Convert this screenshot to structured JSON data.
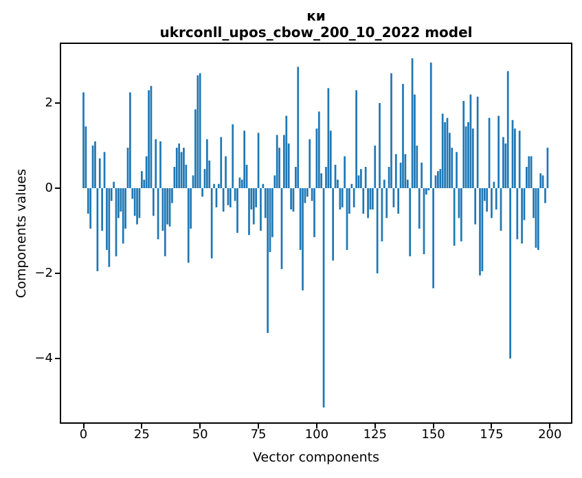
{
  "title": {
    "line1": "ки",
    "line2": "ukrconll_upos_cbow_200_10_2022 model"
  },
  "colors": {
    "bar": "#1f77b4",
    "spine": "#000000",
    "text": "#000000",
    "background": "#ffffff"
  },
  "chart_data": {
    "type": "bar",
    "title": "ки — ukrconll_upos_cbow_200_10_2022 model",
    "xlabel": "Vector components",
    "ylabel": "Components values",
    "x_start": 0,
    "bar_width": 0.8,
    "xlim": [
      -10.4,
      209.4
    ],
    "ylim": [
      -5.54,
      3.42
    ],
    "grid": false,
    "legend": null,
    "x_ticks": [
      0,
      25,
      50,
      75,
      100,
      125,
      150,
      175,
      200
    ],
    "x_tick_labels": [
      "0",
      "25",
      "50",
      "75",
      "100",
      "125",
      "150",
      "175",
      "200"
    ],
    "y_ticks": [
      2,
      0,
      -2,
      -4
    ],
    "y_tick_labels": [
      "2",
      "0",
      "−2",
      "−4"
    ],
    "values": [
      2.25,
      1.45,
      -0.6,
      -0.95,
      1.0,
      1.1,
      -1.95,
      0.7,
      -1.0,
      0.85,
      -1.45,
      -1.85,
      -0.3,
      0.15,
      -1.6,
      -0.7,
      -0.55,
      -1.3,
      -0.95,
      0.95,
      2.25,
      -0.25,
      -0.65,
      -0.85,
      -0.7,
      0.4,
      0.2,
      0.75,
      2.3,
      2.4,
      -0.65,
      1.15,
      -1.2,
      1.1,
      -1.0,
      -1.6,
      -0.85,
      -0.9,
      -0.35,
      0.5,
      0.95,
      1.05,
      0.85,
      0.95,
      0.55,
      -1.75,
      -0.95,
      0.3,
      1.85,
      2.65,
      2.7,
      -0.2,
      0.45,
      1.15,
      0.65,
      -1.65,
      0.1,
      -0.45,
      0.1,
      1.2,
      -0.55,
      0.75,
      -0.4,
      -0.45,
      1.5,
      -0.3,
      -1.05,
      0.25,
      0.2,
      1.35,
      0.55,
      -1.1,
      -0.5,
      -0.85,
      -0.45,
      1.3,
      -1.0,
      0.1,
      -0.7,
      -3.4,
      -1.5,
      -1.15,
      0.3,
      1.25,
      0.95,
      -1.9,
      1.25,
      1.7,
      1.05,
      -0.5,
      -0.55,
      0.5,
      2.85,
      -1.45,
      -2.4,
      -0.35,
      -0.2,
      1.15,
      -0.3,
      -1.15,
      1.4,
      1.8,
      0.35,
      -5.15,
      0.5,
      2.35,
      1.35,
      -1.7,
      0.55,
      0.2,
      -0.5,
      -0.45,
      0.75,
      -1.45,
      -0.6,
      0.1,
      -0.45,
      2.3,
      0.3,
      0.45,
      -0.6,
      0.5,
      -0.7,
      -0.5,
      -0.5,
      1.0,
      -2.0,
      2.0,
      -1.25,
      0.2,
      -0.7,
      0.5,
      2.7,
      -0.45,
      0.8,
      -0.6,
      0.6,
      2.45,
      0.8,
      0.2,
      -1.6,
      3.05,
      2.2,
      1.0,
      -0.95,
      0.6,
      -1.55,
      -0.15,
      -0.05,
      2.95,
      -2.35,
      0.3,
      0.4,
      0.45,
      1.75,
      1.55,
      1.65,
      1.3,
      0.95,
      -1.35,
      0.85,
      -0.7,
      -1.25,
      2.05,
      1.45,
      1.55,
      2.2,
      1.4,
      -0.85,
      2.15,
      -2.05,
      -1.95,
      -0.3,
      -0.55,
      1.65,
      -0.7,
      0.15,
      -0.5,
      1.7,
      -1.0,
      1.2,
      1.05,
      2.75,
      -4.0,
      1.6,
      1.4,
      -1.2,
      1.35,
      -1.3,
      -0.75,
      0.5,
      0.75,
      0.75,
      -0.7,
      -1.4,
      -1.45,
      0.35,
      0.3,
      -0.35,
      0.95
    ]
  }
}
